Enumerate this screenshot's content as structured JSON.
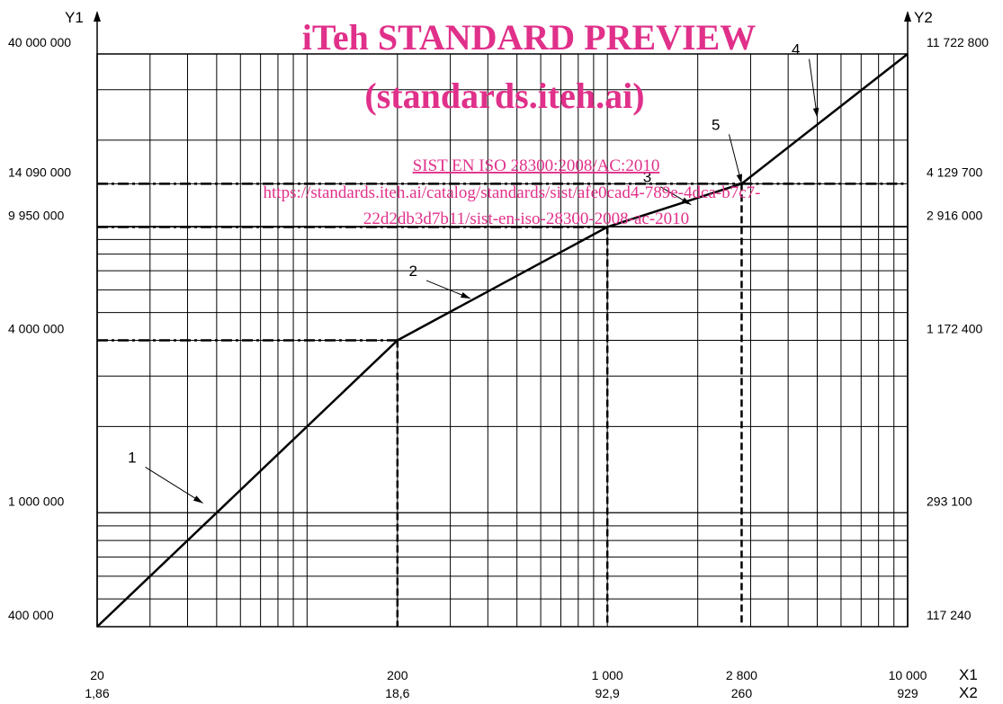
{
  "chart_data": {
    "type": "line",
    "x_scale": "log",
    "y_scale": "log",
    "xlim": [
      20,
      10000
    ],
    "ylim": [
      400000,
      40000000
    ],
    "grid": true,
    "x_ticks": [
      {
        "value": 20,
        "label": "20",
        "label2": "1,86"
      },
      {
        "value": 200,
        "label": "200",
        "label2": "18,6"
      },
      {
        "value": 1000,
        "label": "1 000",
        "label2": "92,9"
      },
      {
        "value": 2800,
        "label": "2 800",
        "label2": "260"
      },
      {
        "value": 10000,
        "label": "10 000",
        "label2": "929"
      }
    ],
    "y_ticks": [
      {
        "value": 400000,
        "label": "400 000",
        "label2": "117 240"
      },
      {
        "value": 1000000,
        "label": "1 000 000",
        "label2": "293 100"
      },
      {
        "value": 4000000,
        "label": "4 000 000",
        "label2": "1 172 400"
      },
      {
        "value": 9950000,
        "label": "9 950 000",
        "label2": "2 916 000"
      },
      {
        "value": 14090000,
        "label": "14 090 000",
        "label2": "4 129 700"
      },
      {
        "value": 40000000,
        "label": "40 000 000",
        "label2": "11 722 800"
      }
    ],
    "axis_labels": {
      "x1": "X1",
      "x2": "X2",
      "y1": "Y1",
      "y2": "Y2"
    },
    "series": [
      {
        "points": [
          [
            20,
            400000
          ],
          [
            200,
            4000000
          ],
          [
            1000,
            9950000
          ],
          [
            2800,
            14090000
          ],
          [
            10000,
            40000000
          ]
        ]
      }
    ],
    "reference_lines": [
      {
        "x": 200,
        "y": 4000000
      },
      {
        "x": 1000,
        "y": 9950000
      },
      {
        "x": 2800,
        "y": 14090000
      }
    ],
    "callouts": [
      {
        "label": "1",
        "x": 45,
        "y": 1080000
      },
      {
        "label": "2",
        "x": 350,
        "y": 5600000
      },
      {
        "label": "3",
        "x": 1900,
        "y": 11900000
      },
      {
        "label": "4",
        "x": 5000,
        "y": 24000000
      },
      {
        "label": "5",
        "x": 2800,
        "y": 14090000
      }
    ]
  },
  "watermark": {
    "title": "iTeh STANDARD PREVIEW",
    "subtitle": "(standards.iteh.ai)",
    "doc_ref": "SIST EN ISO 28300:2008/AC:2010",
    "url_line1": "https://standards.iteh.ai/catalog/standards/sist/afe0cad4-789e-4dca-b7c7-",
    "url_line2": "22d2db3d7b11/sist-en-iso-28300-2008-ac-2010"
  }
}
